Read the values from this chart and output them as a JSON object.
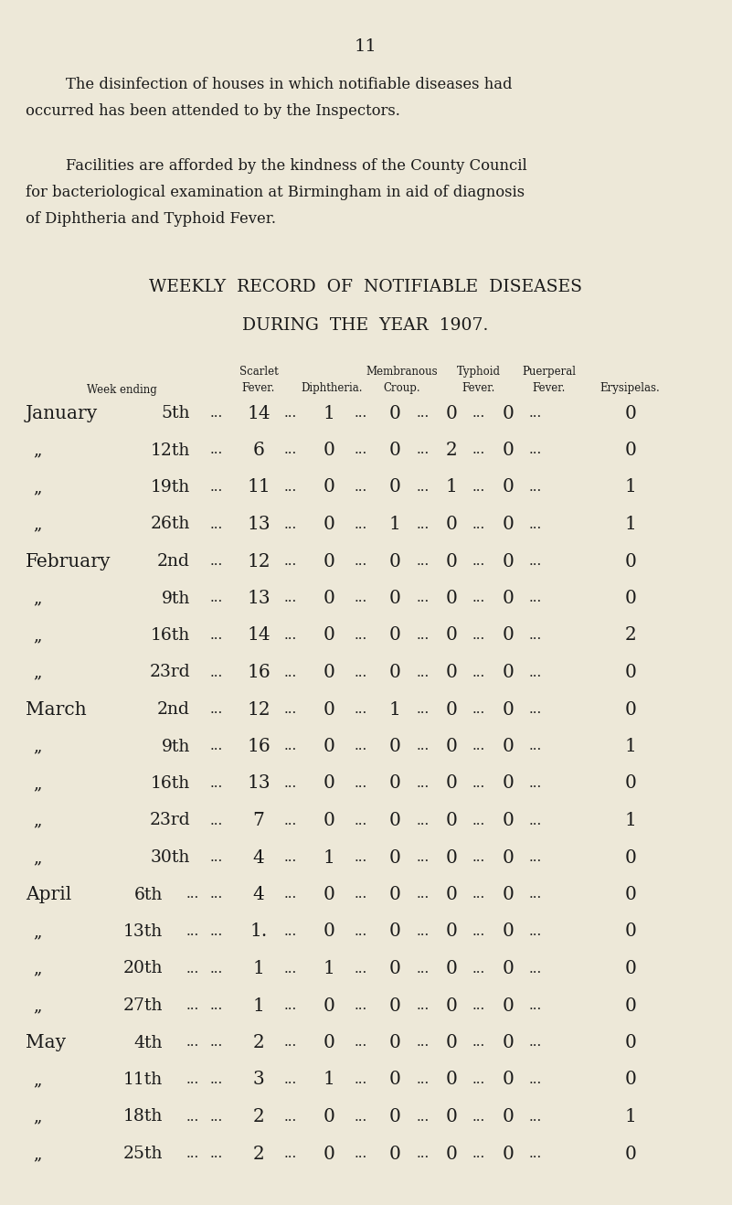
{
  "bg_color": "#EDE8D8",
  "page_number": "11",
  "para1_line1": "The disinfection of houses in which notifiable diseases had",
  "para1_line2": "occurred has been attended to by the Inspectors.",
  "para2_line1": "Facilities are afforded by the kindness of the County Council",
  "para2_line2": "for bacteriological examination at Birmingham in aid of diagnosis",
  "para2_line3": "of Diphtheria and Typhoid Fever.",
  "title1": "WEEKLY  RECORD  OF  NOTIFIABLE  DISEASES",
  "title2": "DURING  THE  YEAR  1907.",
  "col_header_week": "Week ending",
  "col_header_scarlet1": "Scarlet",
  "col_header_scarlet2": "Fever.",
  "col_header_diph": "Diphtheria.",
  "col_header_membranous1": "Membranous",
  "col_header_membranous2": "Croup.",
  "col_header_typhoid1": "Typhoid",
  "col_header_typhoid2": "Fever.",
  "col_header_puerperal1": "Puerperal",
  "col_header_puerperal2": "Fever.",
  "col_header_erysipelas": "Erysipelas.",
  "rows": [
    {
      "month": "January",
      "day": "5th",
      "scarlet": "14",
      "diph": "1",
      "membranous": "0",
      "typhoid": "0",
      "puerperal": "0",
      "erysipelas": "0",
      "is_month_start": true,
      "extra_dots": false
    },
    {
      "month": "",
      "day": "12th",
      "scarlet": "6",
      "diph": "0",
      "membranous": "0",
      "typhoid": "2",
      "puerperal": "0",
      "erysipelas": "0",
      "is_month_start": false,
      "extra_dots": false
    },
    {
      "month": "",
      "day": "19th",
      "scarlet": "11",
      "diph": "0",
      "membranous": "0",
      "typhoid": "1",
      "puerperal": "0",
      "erysipelas": "1",
      "is_month_start": false,
      "extra_dots": false
    },
    {
      "month": "",
      "day": "26th",
      "scarlet": "13",
      "diph": "0",
      "membranous": "1",
      "typhoid": "0",
      "puerperal": "0",
      "erysipelas": "1",
      "is_month_start": false,
      "extra_dots": false
    },
    {
      "month": "February",
      "day": "2nd",
      "scarlet": "12",
      "diph": "0",
      "membranous": "0",
      "typhoid": "0",
      "puerperal": "0",
      "erysipelas": "0",
      "is_month_start": true,
      "extra_dots": false
    },
    {
      "month": "",
      "day": "9th",
      "scarlet": "13",
      "diph": "0",
      "membranous": "0",
      "typhoid": "0",
      "puerperal": "0",
      "erysipelas": "0",
      "is_month_start": false,
      "extra_dots": false
    },
    {
      "month": "",
      "day": "16th",
      "scarlet": "14",
      "diph": "0",
      "membranous": "0",
      "typhoid": "0",
      "puerperal": "0",
      "erysipelas": "2",
      "is_month_start": false,
      "extra_dots": false
    },
    {
      "month": "",
      "day": "23rd",
      "scarlet": "16",
      "diph": "0",
      "membranous": "0",
      "typhoid": "0",
      "puerperal": "0",
      "erysipelas": "0",
      "is_month_start": false,
      "extra_dots": false
    },
    {
      "month": "March",
      "day": "2nd",
      "scarlet": "12",
      "diph": "0",
      "membranous": "1",
      "typhoid": "0",
      "puerperal": "0",
      "erysipelas": "0",
      "is_month_start": true,
      "extra_dots": false
    },
    {
      "month": "",
      "day": "9th",
      "scarlet": "16",
      "diph": "0",
      "membranous": "0",
      "typhoid": "0",
      "puerperal": "0",
      "erysipelas": "1",
      "is_month_start": false,
      "extra_dots": false
    },
    {
      "month": "",
      "day": "16th",
      "scarlet": "13",
      "diph": "0",
      "membranous": "0",
      "typhoid": "0",
      "puerperal": "0",
      "erysipelas": "0",
      "is_month_start": false,
      "extra_dots": false
    },
    {
      "month": "",
      "day": "23rd",
      "scarlet": "7",
      "diph": "0",
      "membranous": "0",
      "typhoid": "0",
      "puerperal": "0",
      "erysipelas": "1",
      "is_month_start": false,
      "extra_dots": false
    },
    {
      "month": "",
      "day": "30th",
      "scarlet": "4",
      "diph": "1",
      "membranous": "0",
      "typhoid": "0",
      "puerperal": "0",
      "erysipelas": "0",
      "is_month_start": false,
      "extra_dots": false
    },
    {
      "month": "April",
      "day": "6th",
      "scarlet": "4",
      "diph": "0",
      "membranous": "0",
      "typhoid": "0",
      "puerperal": "0",
      "erysipelas": "0",
      "is_month_start": true,
      "extra_dots": true
    },
    {
      "month": "",
      "day": "13th",
      "scarlet": "1.",
      "diph": "0",
      "membranous": "0",
      "typhoid": "0",
      "puerperal": "0",
      "erysipelas": "0",
      "is_month_start": false,
      "extra_dots": true
    },
    {
      "month": "",
      "day": "20th",
      "scarlet": "1",
      "diph": "1",
      "membranous": "0",
      "typhoid": "0",
      "puerperal": "0",
      "erysipelas": "0",
      "is_month_start": false,
      "extra_dots": true
    },
    {
      "month": "",
      "day": "27th",
      "scarlet": "1",
      "diph": "0",
      "membranous": "0",
      "typhoid": "0",
      "puerperal": "0",
      "erysipelas": "0",
      "is_month_start": false,
      "extra_dots": true
    },
    {
      "month": "May",
      "day": "4th",
      "scarlet": "2",
      "diph": "0",
      "membranous": "0",
      "typhoid": "0",
      "puerperal": "0",
      "erysipelas": "0",
      "is_month_start": true,
      "extra_dots": true
    },
    {
      "month": "",
      "day": "11th",
      "scarlet": "3",
      "diph": "1",
      "membranous": "0",
      "typhoid": "0",
      "puerperal": "0",
      "erysipelas": "0",
      "is_month_start": false,
      "extra_dots": true
    },
    {
      "month": "",
      "day": "18th",
      "scarlet": "2",
      "diph": "0",
      "membranous": "0",
      "typhoid": "0",
      "puerperal": "0",
      "erysipelas": "1",
      "is_month_start": false,
      "extra_dots": true
    },
    {
      "month": "",
      "day": "25th",
      "scarlet": "2",
      "diph": "0",
      "membranous": "0",
      "typhoid": "0",
      "puerperal": "0",
      "erysipelas": "0",
      "is_month_start": false,
      "extra_dots": true
    }
  ]
}
